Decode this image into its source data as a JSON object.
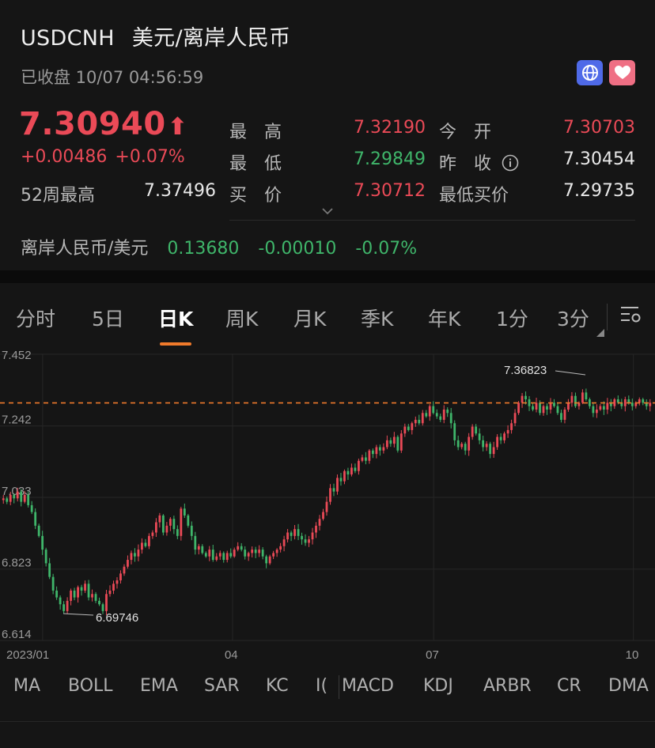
{
  "header": {
    "symbol": "USDCNH",
    "name": "美元/离岸人民币",
    "status": "已收盘 10/07 04:56:59",
    "price": "7.30940",
    "price_arrow": "⬆",
    "change_abs": "+0.00486",
    "change_pct": "+0.07%",
    "globe_icon": "globe-icon",
    "heart_icon": "heart-icon"
  },
  "stats": {
    "high_label": "最　高",
    "high_value": "7.32190",
    "open_label": "今　开",
    "open_value": "7.30703",
    "low_label": "最　低",
    "low_value": "7.29849",
    "prev_close_label": "昨　收",
    "prev_close_value": "7.30454",
    "week52_high_label": "52周最高",
    "week52_high_value": "7.37496",
    "bid_label": "买　价",
    "bid_value": "7.30712",
    "min_bid_label": "最低买价",
    "min_bid_value": "7.29735"
  },
  "inverse": {
    "label": "离岸人民币/美元",
    "value": "0.13680",
    "change_abs": "-0.00010",
    "change_pct": "-0.07%"
  },
  "tabs": [
    {
      "label": "分时"
    },
    {
      "label": "5日"
    },
    {
      "label": "日K"
    },
    {
      "label": "周K"
    },
    {
      "label": "月K"
    },
    {
      "label": "季K"
    },
    {
      "label": "年K"
    },
    {
      "label": "1分"
    },
    {
      "label": "3分"
    }
  ],
  "active_tab": "日K",
  "indicators": [
    "MA",
    "BOLL",
    "EMA",
    "SAR",
    "KC",
    "I(",
    "MACD",
    "KDJ",
    "ARBR",
    "CR",
    "DMA"
  ],
  "colors": {
    "up": "#ea4a57",
    "down": "#3fb56a",
    "accent": "#f07a2b",
    "background": "#151515"
  },
  "chart_data": {
    "type": "candlestick",
    "y_ticks": [
      "7.452",
      "7.242",
      "7.033",
      "6.823",
      "6.614"
    ],
    "ylim": [
      6.614,
      7.452
    ],
    "x_ticks": [
      "2023/01",
      "04",
      "07",
      "10"
    ],
    "reference_price": 7.3094,
    "annotations": [
      {
        "label": "7.36823",
        "value": 7.36823
      },
      {
        "label": "6.69746",
        "value": 6.69746
      }
    ],
    "close_values": [
      7.03,
      7.02,
      7.04,
      7.03,
      7.05,
      7.02,
      7.04,
      7.01,
      6.99,
      6.95,
      6.92,
      6.88,
      6.84,
      6.8,
      6.76,
      6.74,
      6.72,
      6.7,
      6.73,
      6.76,
      6.74,
      6.77,
      6.76,
      6.78,
      6.74,
      6.75,
      6.73,
      6.72,
      6.7,
      6.75,
      6.76,
      6.78,
      6.79,
      6.81,
      6.83,
      6.85,
      6.87,
      6.86,
      6.88,
      6.9,
      6.89,
      6.92,
      6.93,
      6.96,
      6.98,
      6.93,
      6.95,
      6.97,
      6.94,
      6.92,
      7.0,
      6.98,
      6.95,
      6.92,
      6.88,
      6.89,
      6.87,
      6.86,
      6.88,
      6.85,
      6.86,
      6.87,
      6.85,
      6.87,
      6.86,
      6.88,
      6.89,
      6.88,
      6.86,
      6.87,
      6.88,
      6.87,
      6.88,
      6.86,
      6.84,
      6.86,
      6.87,
      6.88,
      6.89,
      6.91,
      6.93,
      6.92,
      6.94,
      6.92,
      6.91,
      6.9,
      6.91,
      6.93,
      6.95,
      6.97,
      6.99,
      7.02,
      7.06,
      7.05,
      7.09,
      7.08,
      7.11,
      7.1,
      7.12,
      7.11,
      7.14,
      7.15,
      7.14,
      7.17,
      7.16,
      7.18,
      7.17,
      7.18,
      7.2,
      7.19,
      7.21,
      7.17,
      7.22,
      7.24,
      7.23,
      7.25,
      7.26,
      7.25,
      7.28,
      7.27,
      7.3,
      7.28,
      7.27,
      7.26,
      7.29,
      7.28,
      7.25,
      7.2,
      7.18,
      7.19,
      7.17,
      7.21,
      7.24,
      7.22,
      7.2,
      7.18,
      7.19,
      7.16,
      7.18,
      7.21,
      7.2,
      7.22,
      7.23,
      7.25,
      7.28,
      7.31,
      7.33,
      7.32,
      7.3,
      7.29,
      7.31,
      7.28,
      7.3,
      7.29,
      7.31,
      7.3,
      7.28,
      7.26,
      7.29,
      7.31,
      7.33,
      7.3,
      7.31,
      7.34,
      7.32,
      7.3,
      7.28,
      7.29,
      7.3,
      7.29,
      7.31,
      7.3,
      7.32,
      7.31,
      7.3,
      7.32,
      7.31,
      7.3,
      7.31,
      7.32,
      7.31,
      7.3,
      7.31
    ]
  }
}
